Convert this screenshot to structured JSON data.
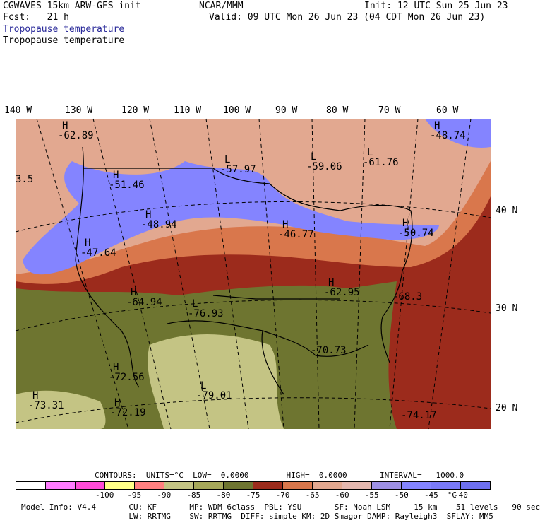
{
  "header": {
    "model": "CGWAVES 15km ARW-GFS init",
    "fcst": "Fcst:   21 h",
    "org": "NCAR/MMM",
    "init": "Init: 12 UTC Sun 25 Jun 23",
    "valid": "Valid: 09 UTC Mon 26 Jun 23 (04 CDT Mon 26 Jun 23)",
    "field1": "Tropopause temperature",
    "field2": "Tropopause temperature"
  },
  "longitudes": [
    "140 W",
    "130 W",
    "120 W",
    "110 W",
    "100 W",
    "90 W",
    "80 W",
    "70 W",
    "60 W"
  ],
  "latitudes": [
    "40 N",
    "30 N",
    "20 N"
  ],
  "map_labels": [
    {
      "type": "H",
      "value": "-62.89"
    },
    {
      "type": "",
      "value": "3.5"
    },
    {
      "type": "H",
      "value": "-51.46"
    },
    {
      "type": "L",
      "value": "-57.97"
    },
    {
      "type": "L",
      "value": "-59.06"
    },
    {
      "type": "L",
      "value": "-61.76"
    },
    {
      "type": "H",
      "value": "-48.74"
    },
    {
      "type": "H",
      "value": "-48.94"
    },
    {
      "type": "H",
      "value": "-47.64"
    },
    {
      "type": "H",
      "value": "-46.77"
    },
    {
      "type": "H",
      "value": "-50.74"
    },
    {
      "type": "H",
      "value": "-64.94"
    },
    {
      "type": "L",
      "value": "-76.93"
    },
    {
      "type": "H",
      "value": "-62.95"
    },
    {
      "type": "",
      "value": "-68.3"
    },
    {
      "type": "",
      "value": "-70.73"
    },
    {
      "type": "H",
      "value": "-72.56"
    },
    {
      "type": "L",
      "value": "-79.01"
    },
    {
      "type": "H",
      "value": "-73.31"
    },
    {
      "type": "H",
      "value": "-72.19"
    },
    {
      "type": "",
      "value": "-74.17"
    }
  ],
  "contours": {
    "line": "CONTOURS:  UNITS=°C  LOW=  0.0000        HIGH=  0.0000       INTERVAL=   1000.0"
  },
  "colorbar": {
    "colors": [
      "#ffffff",
      "#ff7cff",
      "#ff4cd8",
      "#ffff88",
      "#ff8080",
      "#c4c484",
      "#a6a85a",
      "#6e7530",
      "#9c2b1c",
      "#d9774c",
      "#e2a890",
      "#e4b8b0",
      "#9e90e4",
      "#8484ff",
      "#7a7af8",
      "#6e70f0"
    ],
    "ticks": [
      "-100",
      "-95",
      "-90",
      "-85",
      "-80",
      "-75",
      "-70",
      "-65",
      "-60",
      "-55",
      "-50",
      "-45",
      "-40",
      "°C"
    ]
  },
  "footer": {
    "line1": "Model Info: V4.4       CU: KF       MP: WDM 6class  PBL: YSU       SF: Noah LSM     15 km    51 levels   90 sec",
    "line2": "                       LW: RRTMG    SW: RRTMG  DIFF: simple KM: 2D Smagor DAMP: Rayleigh3  SFLAY: MM5"
  },
  "field_colors": {
    "warm_high": "#7a78f0",
    "pink": "#e4b0a4",
    "orange": "#d9774c",
    "red": "#9c2b1c",
    "olive": "#6e7530",
    "light_olive": "#c4c484"
  }
}
